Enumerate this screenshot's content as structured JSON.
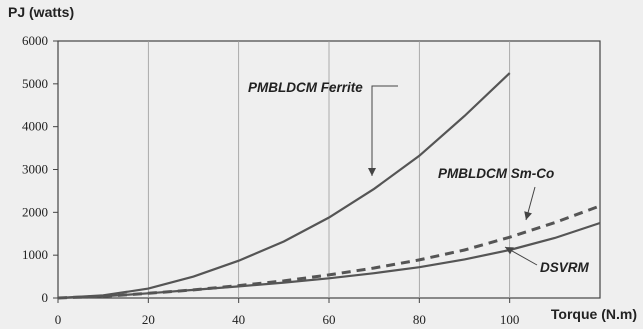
{
  "chart_data": {
    "type": "line",
    "title": "",
    "ylabel": "PJ (watts)",
    "xlabel": "Torque (N.m)",
    "xlim": [
      0,
      120
    ],
    "ylim": [
      0,
      6000
    ],
    "x_ticks": [
      0,
      20,
      40,
      60,
      80,
      100
    ],
    "y_ticks": [
      0,
      1000,
      2000,
      3000,
      4000,
      5000,
      6000
    ],
    "grid": "vertical",
    "series": [
      {
        "name": "PMBLDCM Ferrite",
        "style": "solid",
        "color": "#555555",
        "x": [
          0,
          10,
          20,
          30,
          40,
          50,
          60,
          70,
          80,
          90,
          100
        ],
        "y": [
          0,
          60,
          220,
          500,
          870,
          1320,
          1880,
          2550,
          3320,
          4250,
          5250
        ]
      },
      {
        "name": "PMBLDCM Sm-Co",
        "style": "dashed",
        "color": "#555555",
        "x": [
          0,
          10,
          20,
          30,
          40,
          50,
          60,
          70,
          80,
          90,
          100,
          110,
          120
        ],
        "y": [
          0,
          40,
          110,
          190,
          290,
          400,
          540,
          700,
          890,
          1120,
          1420,
          1760,
          2150
        ]
      },
      {
        "name": "DSVRM",
        "style": "solid",
        "color": "#555555",
        "x": [
          0,
          10,
          20,
          30,
          40,
          50,
          60,
          70,
          80,
          90,
          100,
          110,
          120
        ],
        "y": [
          0,
          40,
          110,
          190,
          270,
          360,
          460,
          580,
          720,
          900,
          1120,
          1400,
          1750
        ]
      }
    ],
    "annotations": [
      {
        "text": "PMBLDCM Ferrite",
        "target_x": 70,
        "target_y": 2550
      },
      {
        "text": "PMBLDCM Sm-Co",
        "target_x": 107,
        "target_y": 1650
      },
      {
        "text": "DSVRM",
        "target_x": 100,
        "target_y": 1150
      }
    ]
  }
}
